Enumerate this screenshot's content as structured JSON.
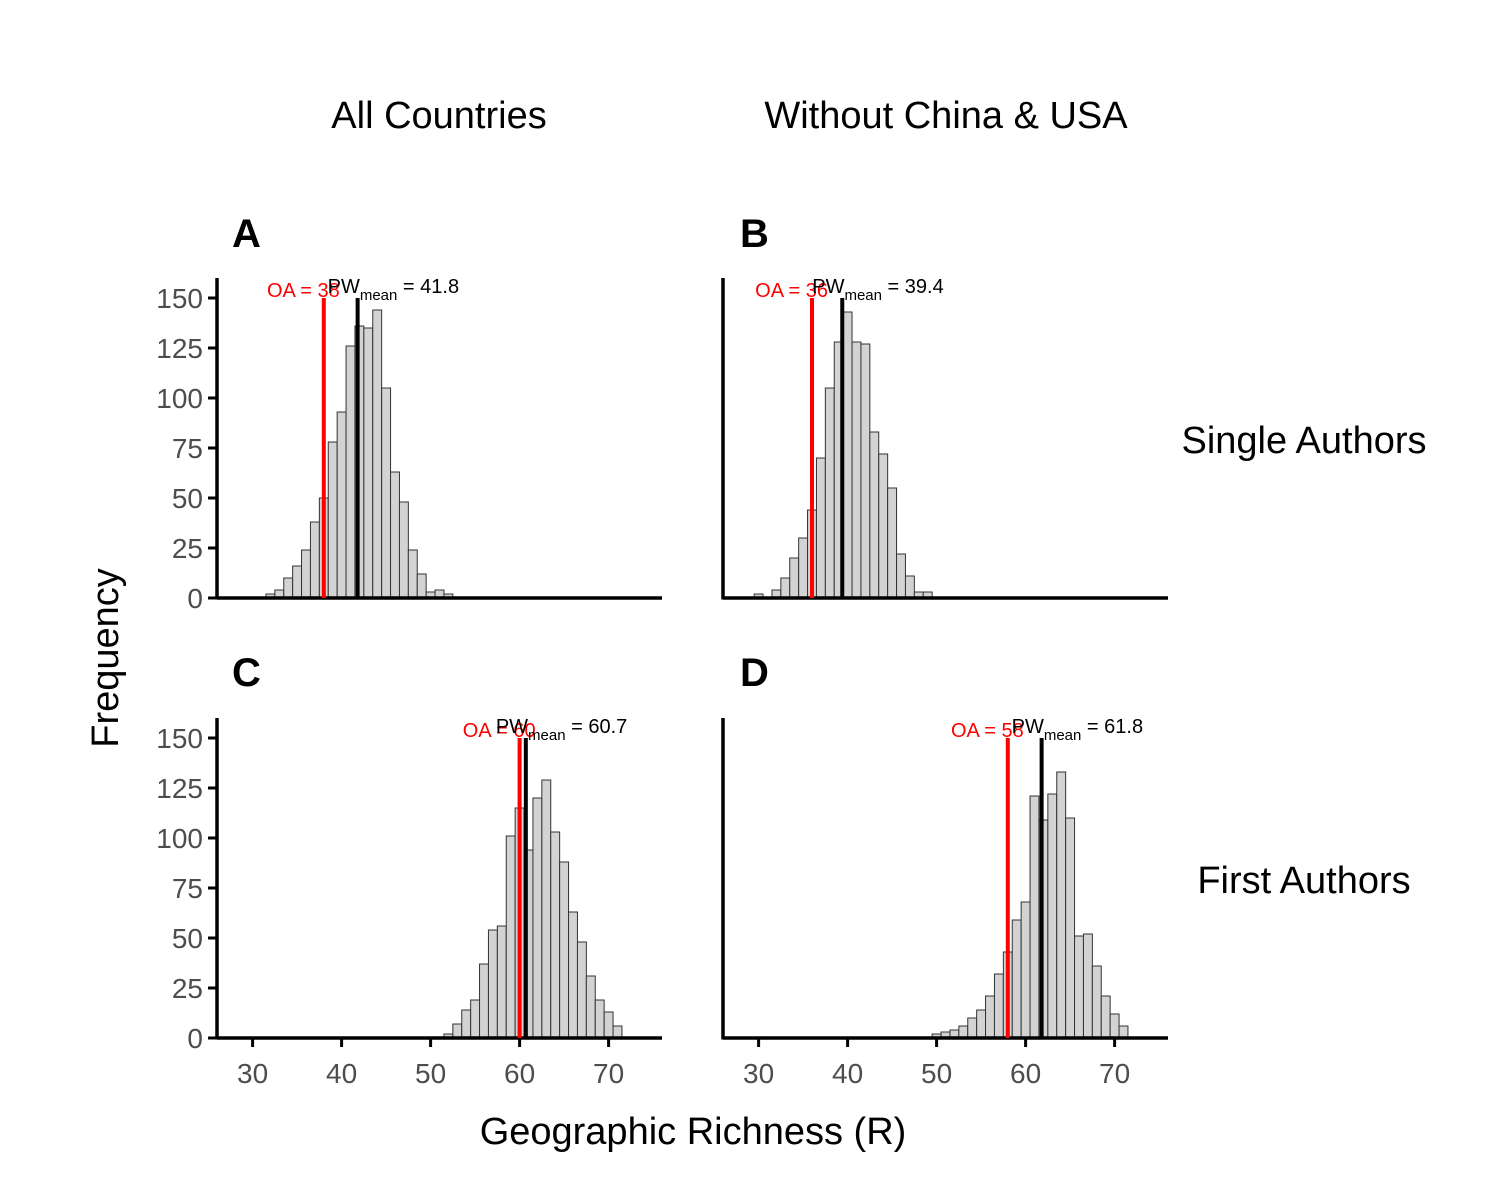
{
  "figure": {
    "column_titles": [
      "All Countries",
      "Without China & USA"
    ],
    "row_titles": [
      "Single Authors",
      "First Authors"
    ],
    "xlabel": "Geographic Richness (R)",
    "ylabel": "Frequency"
  },
  "colors": {
    "observed": "#ff0000",
    "mean": "#000000",
    "bar_fill": "#d3d3d3",
    "bar_stroke": "#333333"
  },
  "chart_data": [
    {
      "type": "bar",
      "panel": "A",
      "column": "All Countries",
      "row": "Single Authors",
      "xlim": [
        26,
        76
      ],
      "ylim": [
        0,
        160
      ],
      "x_ticks": [
        30,
        40,
        50,
        60,
        70
      ],
      "y_ticks": [
        0,
        25,
        50,
        75,
        100,
        125,
        150
      ],
      "show_x_tick_labels": false,
      "show_y_tick_labels": true,
      "bin_width": 1,
      "bins": [
        32,
        33,
        34,
        35,
        36,
        37,
        38,
        39,
        40,
        41,
        42,
        43,
        44,
        45,
        46,
        47,
        48,
        49,
        50,
        51,
        52
      ],
      "values": [
        2,
        4,
        10,
        16,
        24,
        38,
        50,
        78,
        93,
        126,
        136,
        135,
        144,
        105,
        63,
        48,
        24,
        12,
        3,
        4,
        2
      ],
      "observed": {
        "label": "OA = 38",
        "value": 38
      },
      "mean": {
        "label_main": "PW",
        "label_sub": "mean",
        "label_rest": " = 41.8",
        "value": 41.8
      }
    },
    {
      "type": "bar",
      "panel": "B",
      "column": "Without China & USA",
      "row": "Single Authors",
      "xlim": [
        26,
        76
      ],
      "ylim": [
        0,
        160
      ],
      "x_ticks": [
        30,
        40,
        50,
        60,
        70
      ],
      "y_ticks": [
        0,
        25,
        50,
        75,
        100,
        125,
        150
      ],
      "show_x_tick_labels": false,
      "show_y_tick_labels": false,
      "bin_width": 1,
      "bins": [
        30,
        31,
        32,
        33,
        34,
        35,
        36,
        37,
        38,
        39,
        40,
        41,
        42,
        43,
        44,
        45,
        46,
        47,
        48,
        49
      ],
      "values": [
        2,
        0,
        4,
        10,
        20,
        30,
        44,
        70,
        105,
        128,
        143,
        128,
        127,
        83,
        72,
        55,
        22,
        11,
        3,
        3
      ],
      "observed": {
        "label": "OA = 36",
        "value": 36
      },
      "mean": {
        "label_main": "PW",
        "label_sub": "mean",
        "label_rest": " = 39.4",
        "value": 39.4
      }
    },
    {
      "type": "bar",
      "panel": "C",
      "column": "All Countries",
      "row": "First Authors",
      "xlim": [
        26,
        76
      ],
      "ylim": [
        0,
        160
      ],
      "x_ticks": [
        30,
        40,
        50,
        60,
        70
      ],
      "y_ticks": [
        0,
        25,
        50,
        75,
        100,
        125,
        150
      ],
      "show_x_tick_labels": true,
      "show_y_tick_labels": true,
      "bin_width": 1,
      "bins": [
        52,
        53,
        54,
        55,
        56,
        57,
        58,
        59,
        60,
        61,
        62,
        63,
        64,
        65,
        66,
        67,
        68,
        69,
        70,
        71
      ],
      "values": [
        2,
        7,
        14,
        19,
        37,
        54,
        56,
        101,
        115,
        94,
        120,
        129,
        103,
        88,
        63,
        48,
        31,
        19,
        13,
        6
      ],
      "observed": {
        "label": "OA = 60",
        "value": 60
      },
      "mean": {
        "label_main": "PW",
        "label_sub": "mean",
        "label_rest": " = 60.7",
        "value": 60.7
      }
    },
    {
      "type": "bar",
      "panel": "D",
      "column": "Without China & USA",
      "row": "First Authors",
      "xlim": [
        26,
        76
      ],
      "ylim": [
        0,
        160
      ],
      "x_ticks": [
        30,
        40,
        50,
        60,
        70
      ],
      "y_ticks": [
        0,
        25,
        50,
        75,
        100,
        125,
        150
      ],
      "show_x_tick_labels": true,
      "show_y_tick_labels": false,
      "bin_width": 1,
      "bins": [
        50,
        51,
        52,
        53,
        54,
        55,
        56,
        57,
        58,
        59,
        60,
        61,
        62,
        63,
        64,
        65,
        66,
        67,
        68,
        69,
        70,
        71
      ],
      "values": [
        2,
        3,
        4,
        6,
        10,
        14,
        21,
        32,
        43,
        59,
        68,
        121,
        109,
        122,
        133,
        110,
        51,
        52,
        36,
        21,
        12,
        6
      ],
      "observed": {
        "label": "OA = 58",
        "value": 58
      },
      "mean": {
        "label_main": "PW",
        "label_sub": "mean",
        "label_rest": " = 61.8",
        "value": 61.8
      }
    }
  ]
}
